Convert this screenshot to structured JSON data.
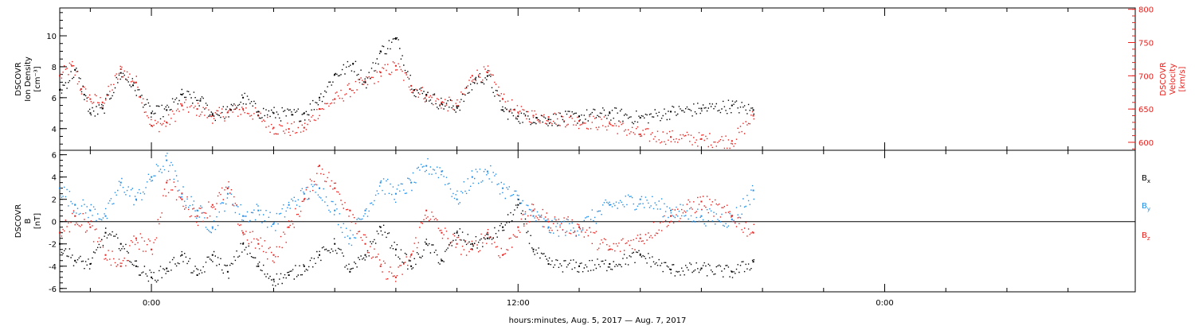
{
  "colors": {
    "black": "#000000",
    "red": "#e8201c",
    "blue": "#1e8ce6"
  },
  "chart_data": [
    {
      "type": "scatter",
      "panel": "top",
      "title": "",
      "ylabel_left_lines": [
        "DSCOVR",
        "Ion Density",
        "[cm⁻³]"
      ],
      "ylabel_right_lines": [
        "DSCOVR",
        "Velocity",
        "[km/s]"
      ],
      "ylim_left": [
        2.6,
        11.8
      ],
      "ylim_right": [
        588,
        802
      ],
      "yticks_left": [
        {
          "value": 4,
          "label": "4"
        },
        {
          "value": 6,
          "label": "6"
        },
        {
          "value": 8,
          "label": "8"
        },
        {
          "value": 10,
          "label": "10"
        }
      ],
      "yticks_right": [
        {
          "value": 600,
          "label": "600"
        },
        {
          "value": 650,
          "label": "650"
        },
        {
          "value": 700,
          "label": "700"
        },
        {
          "value": 750,
          "label": "750"
        },
        {
          "value": 800,
          "label": "800"
        }
      ],
      "series": [
        {
          "color": "black",
          "axis": "left",
          "x": [
            -3.0,
            -2.5,
            -2.2,
            -2.0,
            -1.6,
            -1.0,
            -0.6,
            0.0,
            0.5,
            1.0,
            1.6,
            2.0,
            2.6,
            3.0,
            3.5,
            4.0,
            4.6,
            5.0,
            5.5,
            6.0,
            6.6,
            7.0,
            7.5,
            8.0,
            8.6,
            9.0,
            9.5,
            10.0,
            10.6,
            11.0,
            11.5,
            12.0,
            12.6,
            13.0,
            14.0,
            15.0,
            16.0,
            17.0,
            18.0,
            19.0,
            19.7
          ],
          "y": [
            6.5,
            7.8,
            6.2,
            5.0,
            5.3,
            7.6,
            6.8,
            5.0,
            5.2,
            6.2,
            5.8,
            4.9,
            5.2,
            6.0,
            5.1,
            5.0,
            4.9,
            5.0,
            6.0,
            7.5,
            8.2,
            7.0,
            9.0,
            9.8,
            6.5,
            6.2,
            5.6,
            5.4,
            7.2,
            7.4,
            5.2,
            4.8,
            4.7,
            4.6,
            4.8,
            5.0,
            4.7,
            5.1,
            5.3,
            5.5,
            5.2
          ]
        },
        {
          "color": "red",
          "axis": "right",
          "x": [
            -3.0,
            -2.6,
            -2.3,
            -2.0,
            -1.6,
            -1.0,
            -0.5,
            0.0,
            0.5,
            1.0,
            1.5,
            2.0,
            2.5,
            3.0,
            3.5,
            4.0,
            4.5,
            5.0,
            5.5,
            6.0,
            6.5,
            7.0,
            7.5,
            8.0,
            8.5,
            9.0,
            9.5,
            10.0,
            10.5,
            11.0,
            11.5,
            12.0,
            12.5,
            13.0,
            14.0,
            15.0,
            16.0,
            17.0,
            18.0,
            19.0,
            19.7
          ],
          "y": [
            700,
            715,
            680,
            665,
            660,
            710,
            690,
            625,
            630,
            655,
            650,
            640,
            645,
            650,
            640,
            622,
            620,
            622,
            650,
            665,
            680,
            690,
            705,
            715,
            685,
            670,
            660,
            655,
            700,
            705,
            665,
            645,
            640,
            638,
            632,
            628,
            612,
            608,
            605,
            602,
            640
          ]
        }
      ]
    },
    {
      "type": "scatter",
      "panel": "bottom",
      "title": "",
      "ylabel_left_lines": [
        "DSCOVR",
        "B",
        "[nT]"
      ],
      "ylim": [
        -6.3,
        6.4
      ],
      "yticks": [
        {
          "value": -6,
          "label": "-6"
        },
        {
          "value": -4,
          "label": "-4"
        },
        {
          "value": -2,
          "label": "-2"
        },
        {
          "value": 0,
          "label": "0"
        },
        {
          "value": 2,
          "label": "2"
        },
        {
          "value": 4,
          "label": "4"
        },
        {
          "value": 6,
          "label": "6"
        }
      ],
      "zero_line": true,
      "series": [
        {
          "name": "Bx",
          "color": "black",
          "x": [
            -3.0,
            -2.5,
            -2.0,
            -1.5,
            -1.0,
            -0.5,
            0.0,
            0.5,
            1.0,
            1.5,
            2.0,
            2.5,
            3.0,
            3.5,
            4.0,
            4.5,
            5.0,
            5.5,
            6.0,
            6.5,
            7.0,
            7.5,
            8.0,
            8.5,
            9.0,
            9.5,
            10.0,
            10.5,
            11.0,
            11.5,
            12.0,
            12.5,
            13.0,
            14.0,
            15.0,
            16.0,
            17.0,
            18.0,
            19.0,
            19.7
          ],
          "y": [
            -2.0,
            -3.5,
            -3.8,
            -1.0,
            -2.0,
            -4.0,
            -5.0,
            -4.2,
            -3.0,
            -4.8,
            -3.0,
            -4.5,
            -2.0,
            -4.0,
            -5.2,
            -4.8,
            -4.0,
            -3.0,
            -2.0,
            -4.5,
            -3.0,
            -0.5,
            -2.5,
            -4.0,
            -2.0,
            -3.5,
            -1.0,
            -2.0,
            -1.5,
            -0.5,
            1.5,
            -2.5,
            -3.8,
            -4.0,
            -3.8,
            -3.0,
            -4.3,
            -4.2,
            -4.5,
            -3.6
          ]
        },
        {
          "name": "By",
          "color": "blue",
          "x": [
            -3.0,
            -2.5,
            -2.0,
            -1.5,
            -1.0,
            -0.5,
            0.0,
            0.5,
            1.0,
            1.5,
            2.0,
            2.5,
            3.0,
            3.5,
            4.0,
            4.5,
            5.0,
            5.5,
            6.0,
            6.5,
            7.0,
            7.5,
            8.0,
            8.5,
            9.0,
            9.5,
            10.0,
            10.5,
            11.0,
            11.5,
            12.0,
            12.5,
            13.0,
            14.0,
            15.0,
            16.0,
            17.0,
            18.0,
            19.0,
            19.7
          ],
          "y": [
            3.0,
            1.5,
            1.0,
            0.5,
            3.5,
            2.0,
            4.0,
            5.5,
            2.5,
            1.0,
            -0.5,
            2.5,
            0.5,
            1.0,
            -0.2,
            1.5,
            2.5,
            3.0,
            1.0,
            -1.5,
            1.0,
            3.5,
            2.5,
            3.5,
            5.0,
            4.5,
            2.0,
            4.0,
            4.5,
            3.0,
            2.0,
            0.5,
            -0.5,
            -0.5,
            1.5,
            2.0,
            1.0,
            0.5,
            0.2,
            2.8
          ]
        },
        {
          "name": "Bz",
          "color": "red",
          "x": [
            -3.0,
            -2.5,
            -2.0,
            -1.5,
            -1.0,
            -0.5,
            0.0,
            0.5,
            1.0,
            1.5,
            2.0,
            2.5,
            3.0,
            3.5,
            4.0,
            4.5,
            5.0,
            5.5,
            6.0,
            6.5,
            7.0,
            7.5,
            8.0,
            8.5,
            9.0,
            9.5,
            10.0,
            10.5,
            11.0,
            11.5,
            12.0,
            12.5,
            13.0,
            14.0,
            15.0,
            16.0,
            17.0,
            18.0,
            19.0,
            19.7
          ],
          "y": [
            -1.0,
            0.5,
            -0.5,
            -3.0,
            -4.0,
            -1.5,
            -2.5,
            3.5,
            2.0,
            0.5,
            1.5,
            3.0,
            -1.0,
            -2.0,
            -3.0,
            -0.5,
            2.0,
            5.0,
            3.0,
            1.0,
            -2.0,
            -4.0,
            -5.0,
            -3.0,
            1.0,
            -1.0,
            -2.0,
            -2.5,
            -1.0,
            -3.0,
            -0.5,
            1.0,
            0.0,
            -0.5,
            -2.5,
            -1.5,
            0.5,
            1.8,
            0.5,
            -1.0
          ]
        }
      ]
    }
  ],
  "x_axis": {
    "xlim": [
      -3.0,
      32.2
    ],
    "major_ticks": [
      {
        "value": 0,
        "label": "0:00"
      },
      {
        "value": 12,
        "label": "12:00"
      },
      {
        "value": 24,
        "label": "0:00"
      }
    ],
    "minor_ticks": [
      -2,
      2,
      4,
      6,
      8,
      10,
      14,
      16,
      18,
      20,
      22,
      26,
      28,
      30
    ],
    "title": "hours:minutes, Aug.  5, 2017 — Aug.  7, 2017"
  },
  "legend": [
    {
      "label": "B",
      "sub": "x",
      "color": "black"
    },
    {
      "label": "B",
      "sub": "y",
      "color": "blue"
    },
    {
      "label": "B",
      "sub": "z",
      "color": "red"
    }
  ]
}
